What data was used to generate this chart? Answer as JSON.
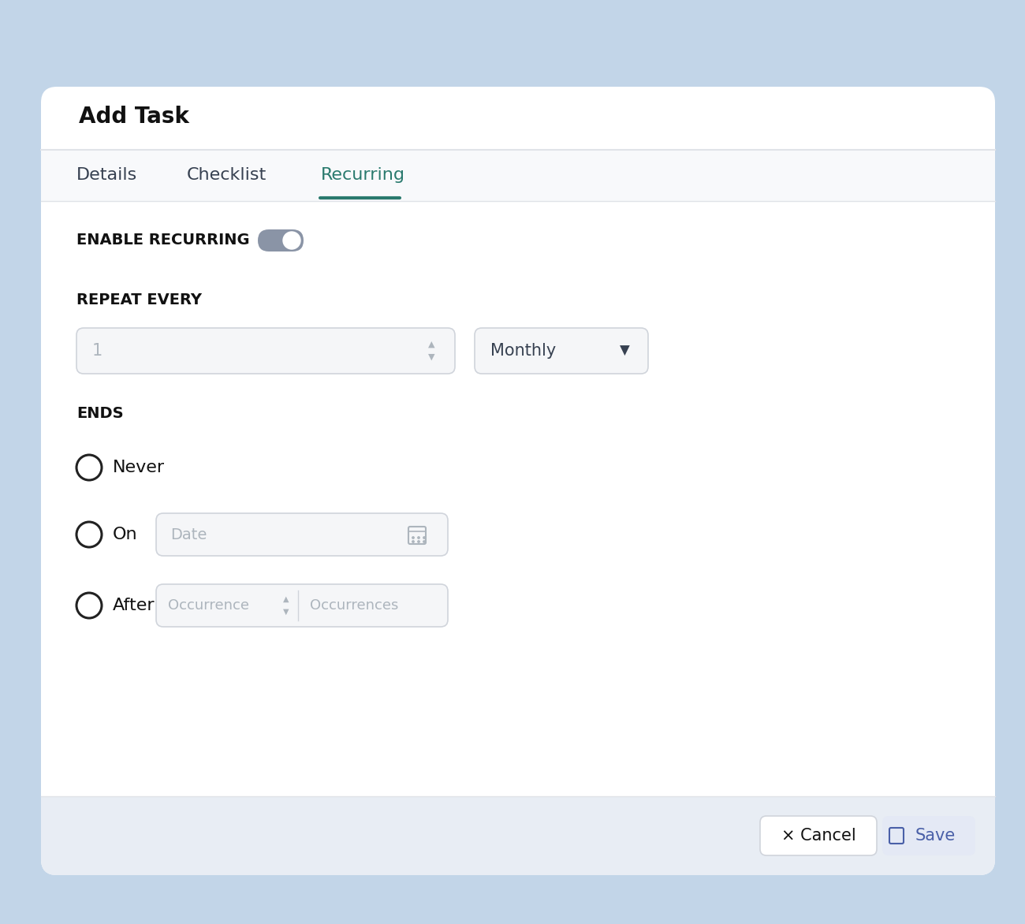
{
  "bg_outer": "#c2d5e8",
  "bg_card": "#ffffff",
  "bg_tab_area": "#f0f2f6",
  "bg_footer": "#e8edf4",
  "title": "Add Task",
  "tabs": [
    "Details",
    "Checklist",
    "Recurring"
  ],
  "active_tab": "Recurring",
  "active_tab_color": "#2a7a6e",
  "tab_underline_color": "#2a7a6e",
  "section_label_recurring": "ENABLE RECURRING",
  "section_label_repeat": "REPEAT EVERY",
  "section_label_ends": "ENDS",
  "input_number": "1",
  "input_dropdown": "Monthly",
  "radio_options": [
    "Never",
    "On",
    "After"
  ],
  "date_placeholder": "Date",
  "occurrence_placeholder": "Occurrence",
  "occurrences_label": "Occurrences",
  "cancel_text": "× Cancel",
  "save_text": "Save",
  "toggle_bg": "#8a94a6",
  "toggle_knob": "#ffffff",
  "input_bg": "#f5f6f8",
  "input_border": "#d0d4db",
  "radio_border": "#222222",
  "text_color": "#111111",
  "placeholder_color": "#adb5bd",
  "label_color": "#374151",
  "cancel_bg": "#ffffff",
  "cancel_border": "#d0d4db",
  "cancel_text_color": "#111111",
  "save_bg": "#e4e9f5",
  "save_text_color": "#4a60a8",
  "divider_color": "#e0e3e8",
  "tab_inactive_color": "#374151",
  "card_shadow": "#d0d5de"
}
